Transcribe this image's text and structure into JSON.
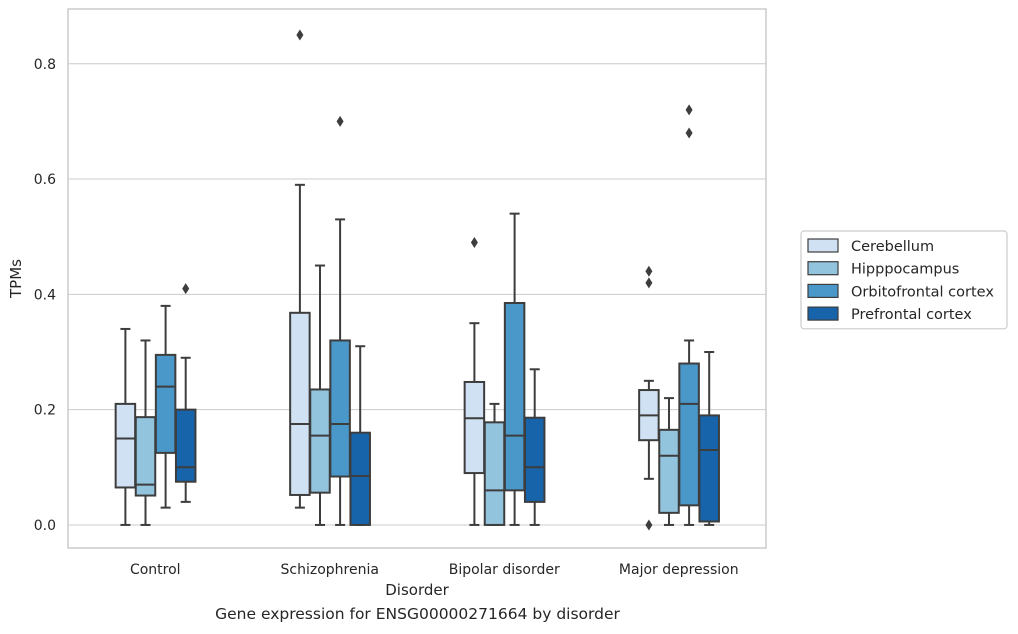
{
  "caption": "Gene expression for ENSG00000271664 by disorder",
  "chart_data": {
    "type": "box",
    "xlabel": "Disorder",
    "ylabel": "TPMs",
    "ylim": [
      -0.04,
      0.895
    ],
    "yticks": [
      0.0,
      0.2,
      0.4,
      0.6,
      0.8
    ],
    "ytick_labels": [
      "0.0",
      "0.2",
      "0.4",
      "0.6",
      "0.8"
    ],
    "grid": "horizontal",
    "legend_position": "right",
    "categories": [
      "Control",
      "Schizophrenia",
      "Bipolar disorder",
      "Major depression"
    ],
    "series": [
      {
        "name": "Cerebellum",
        "color": "#cfe1f2",
        "boxes": [
          {
            "whislo": 0.0,
            "q1": 0.065,
            "med": 0.15,
            "q3": 0.21,
            "whishi": 0.34,
            "fliers": []
          },
          {
            "whislo": 0.03,
            "q1": 0.052,
            "med": 0.175,
            "q3": 0.368,
            "whishi": 0.59,
            "fliers": [
              0.85
            ]
          },
          {
            "whislo": 0.0,
            "q1": 0.09,
            "med": 0.185,
            "q3": 0.248,
            "whishi": 0.35,
            "fliers": [
              0.49
            ]
          },
          {
            "whislo": 0.08,
            "q1": 0.147,
            "med": 0.19,
            "q3": 0.234,
            "whishi": 0.25,
            "fliers": [
              0.44,
              0.42,
              0.0
            ]
          }
        ]
      },
      {
        "name": "Hipppocampus",
        "color": "#93c4de",
        "boxes": [
          {
            "whislo": 0.0,
            "q1": 0.051,
            "med": 0.07,
            "q3": 0.187,
            "whishi": 0.32,
            "fliers": []
          },
          {
            "whislo": 0.0,
            "q1": 0.056,
            "med": 0.155,
            "q3": 0.235,
            "whishi": 0.45,
            "fliers": []
          },
          {
            "whislo": 0.0,
            "q1": 0.0,
            "med": 0.06,
            "q3": 0.178,
            "whishi": 0.21,
            "fliers": []
          },
          {
            "whislo": 0.0,
            "q1": 0.021,
            "med": 0.12,
            "q3": 0.165,
            "whishi": 0.22,
            "fliers": []
          }
        ]
      },
      {
        "name": "Orbitofrontal cortex",
        "color": "#4a98c9",
        "boxes": [
          {
            "whislo": 0.03,
            "q1": 0.125,
            "med": 0.24,
            "q3": 0.295,
            "whishi": 0.38,
            "fliers": []
          },
          {
            "whislo": 0.0,
            "q1": 0.084,
            "med": 0.175,
            "q3": 0.32,
            "whishi": 0.53,
            "fliers": [
              0.7
            ]
          },
          {
            "whislo": 0.0,
            "q1": 0.06,
            "med": 0.155,
            "q3": 0.385,
            "whishi": 0.54,
            "fliers": []
          },
          {
            "whislo": 0.0,
            "q1": 0.034,
            "med": 0.21,
            "q3": 0.28,
            "whishi": 0.32,
            "fliers": [
              0.72,
              0.68
            ]
          }
        ]
      },
      {
        "name": "Prefrontal cortex",
        "color": "#1764ab",
        "boxes": [
          {
            "whislo": 0.04,
            "q1": 0.075,
            "med": 0.1,
            "q3": 0.2,
            "whishi": 0.29,
            "fliers": [
              0.41
            ]
          },
          {
            "whislo": 0.0,
            "q1": 0.0,
            "med": 0.085,
            "q3": 0.16,
            "whishi": 0.31,
            "fliers": []
          },
          {
            "whislo": 0.0,
            "q1": 0.04,
            "med": 0.1,
            "q3": 0.186,
            "whishi": 0.27,
            "fliers": []
          },
          {
            "whislo": 0.0,
            "q1": 0.006,
            "med": 0.13,
            "q3": 0.19,
            "whishi": 0.3,
            "fliers": []
          }
        ]
      }
    ]
  }
}
